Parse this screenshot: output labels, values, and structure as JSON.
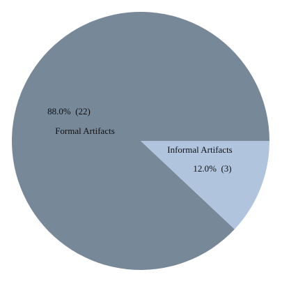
{
  "chart_data": {
    "type": "pie",
    "title": "",
    "start_angle_deg": 0,
    "direction": "counterclockwise",
    "slices": [
      {
        "label": "Formal Artifacts",
        "value": 22,
        "percent": 88.0,
        "value_label": "88.0%  (22)",
        "color": "#778899"
      },
      {
        "label": "Informal Artifacts",
        "value": 3,
        "percent": 12.0,
        "value_label": "12.0%  (3)",
        "color": "#b0c4de"
      }
    ]
  }
}
